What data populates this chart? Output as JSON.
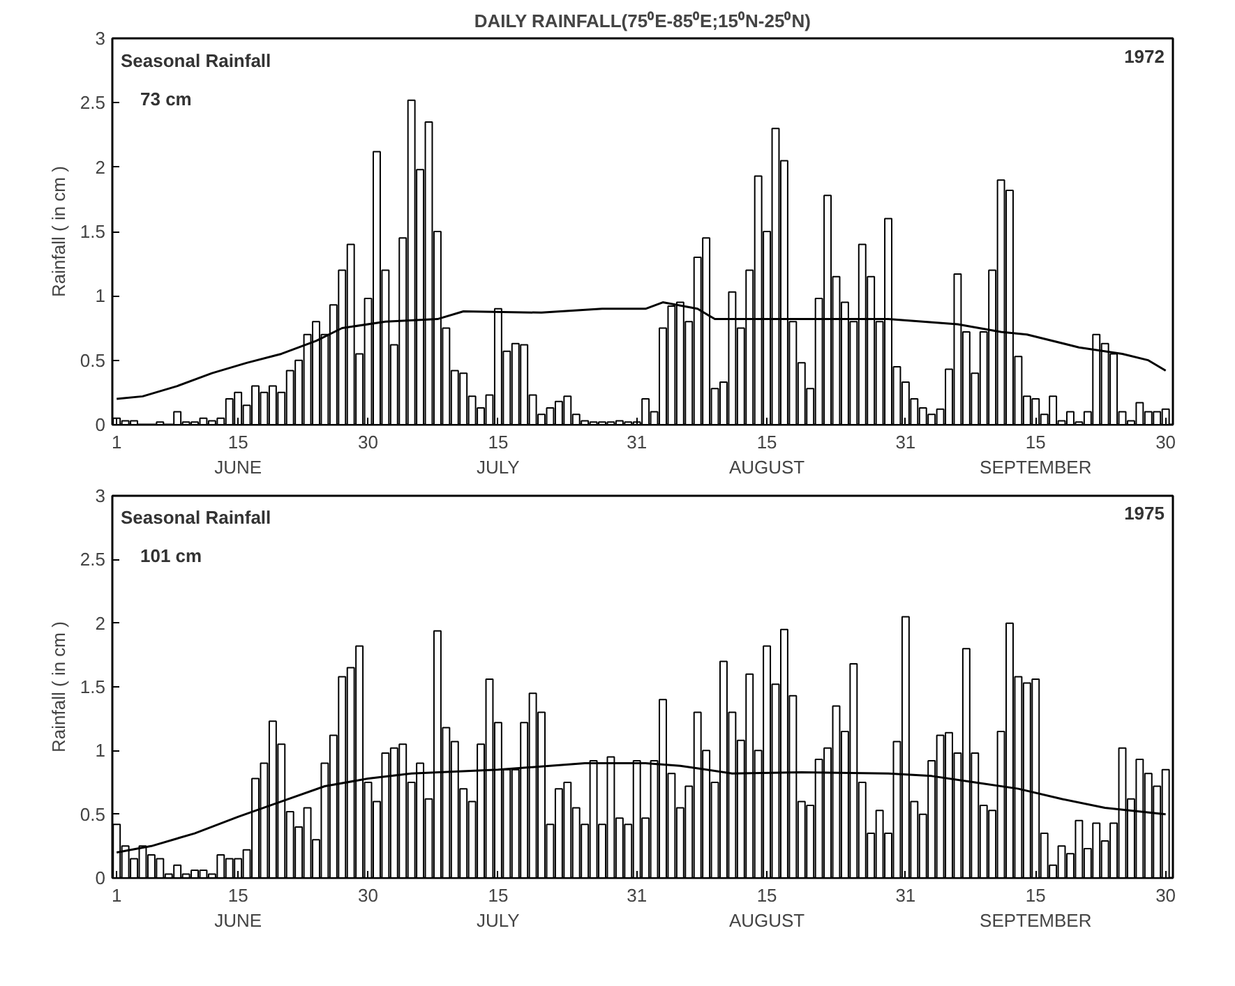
{
  "chart_data": [
    {
      "type": "bar",
      "title": "DAILY RAINFALL(75⁰E-85⁰E;15⁰N-25⁰N)",
      "ylabel": "Rainfall ( in cm )",
      "annotations": [
        "Seasonal Rainfall",
        "73 cm",
        "1972"
      ],
      "x": [
        "1972-06-01",
        "1972-06-02",
        "1972-06-03",
        "1972-06-04",
        "1972-06-05",
        "1972-06-06",
        "1972-06-07",
        "1972-06-08",
        "1972-06-09",
        "1972-06-10",
        "1972-06-11",
        "1972-06-12",
        "1972-06-13",
        "1972-06-14",
        "1972-06-15",
        "1972-06-16",
        "1972-06-17",
        "1972-06-18",
        "1972-06-19",
        "1972-06-20",
        "1972-06-21",
        "1972-06-22",
        "1972-06-23",
        "1972-06-24",
        "1972-06-25",
        "1972-06-26",
        "1972-06-27",
        "1972-06-28",
        "1972-06-29",
        "1972-06-30",
        "1972-07-01",
        "1972-07-02",
        "1972-07-03",
        "1972-07-04",
        "1972-07-05",
        "1972-07-06",
        "1972-07-07",
        "1972-07-08",
        "1972-07-09",
        "1972-07-10",
        "1972-07-11",
        "1972-07-12",
        "1972-07-13",
        "1972-07-14",
        "1972-07-15",
        "1972-07-16",
        "1972-07-17",
        "1972-07-18",
        "1972-07-19",
        "1972-07-20",
        "1972-07-21",
        "1972-07-22",
        "1972-07-23",
        "1972-07-24",
        "1972-07-25",
        "1972-07-26",
        "1972-07-27",
        "1972-07-28",
        "1972-07-29",
        "1972-07-30",
        "1972-07-31",
        "1972-08-01",
        "1972-08-02",
        "1972-08-03",
        "1972-08-04",
        "1972-08-05",
        "1972-08-06",
        "1972-08-07",
        "1972-08-08",
        "1972-08-09",
        "1972-08-10",
        "1972-08-11",
        "1972-08-12",
        "1972-08-13",
        "1972-08-14",
        "1972-08-15",
        "1972-08-16",
        "1972-08-17",
        "1972-08-18",
        "1972-08-19",
        "1972-08-20",
        "1972-08-21",
        "1972-08-22",
        "1972-08-23",
        "1972-08-24",
        "1972-08-25",
        "1972-08-26",
        "1972-08-27",
        "1972-08-28",
        "1972-08-29",
        "1972-08-30",
        "1972-08-31",
        "1972-09-01",
        "1972-09-02",
        "1972-09-03",
        "1972-09-04",
        "1972-09-05",
        "1972-09-06",
        "1972-09-07",
        "1972-09-08",
        "1972-09-09",
        "1972-09-10",
        "1972-09-11",
        "1972-09-12",
        "1972-09-13",
        "1972-09-14",
        "1972-09-15",
        "1972-09-16",
        "1972-09-17",
        "1972-09-18",
        "1972-09-19",
        "1972-09-20",
        "1972-09-21",
        "1972-09-22",
        "1972-09-23",
        "1972-09-24",
        "1972-09-25",
        "1972-09-26",
        "1972-09-27",
        "1972-09-28",
        "1972-09-29",
        "1972-09-30"
      ],
      "xlim": [
        "1972-05-31T12:00",
        "1972-09-30T20:00"
      ],
      "xticks": [
        {
          "value": "1972-06-01",
          "label": "1"
        },
        {
          "value": "1972-06-15",
          "label": "15\nJUNE"
        },
        {
          "value": "1972-06-30",
          "label": "30"
        },
        {
          "value": "1972-07-15",
          "label": "15\nJULY"
        },
        {
          "value": "1972-07-31",
          "label": "31"
        },
        {
          "value": "1972-08-15",
          "label": "15\nAUGUST"
        },
        {
          "value": "1972-08-31",
          "label": "31"
        },
        {
          "value": "1972-09-15",
          "label": "15\nSEPTEMBER"
        },
        {
          "value": "1972-09-30",
          "label": "30"
        }
      ],
      "ylim": [
        0,
        3
      ],
      "yticks": [
        0,
        0.5,
        1,
        1.5,
        2,
        2.5,
        3
      ],
      "grid": false,
      "series": [
        {
          "color": "#ffffff",
          "values": [
            0.05,
            0.03,
            0.03,
            0,
            0,
            0.02,
            0,
            0.1,
            0.02,
            0.02,
            0.05,
            0.03,
            0.05,
            0.2,
            0.25,
            0.15,
            0.3,
            0.25,
            0.3,
            0.25,
            0.42,
            0.5,
            0.7,
            0.8,
            0.7,
            0.93,
            1.2,
            1.4,
            0.55,
            0.98,
            2.12,
            1.2,
            0.62,
            1.45,
            2.52,
            1.98,
            2.35,
            1.5,
            0.75,
            0.42,
            0.4,
            0.22,
            0.13,
            0.23,
            0.9,
            0.57,
            0.63,
            0.62,
            0.23,
            0.08,
            0.13,
            0.18,
            0.22,
            0.08,
            0.03,
            0.02,
            0.02,
            0.02,
            0.03,
            0.02,
            0.02,
            0.2,
            0.1,
            0.75,
            0.92,
            0.95,
            0.8,
            1.3,
            1.45,
            0.28,
            0.33,
            1.03,
            0.75,
            1.2,
            1.93,
            1.5,
            2.3,
            2.05,
            0.8,
            0.48,
            0.28,
            0.98,
            1.78,
            1.15,
            0.95,
            0.8,
            1.4,
            1.15,
            0.8,
            1.6,
            0.45,
            0.33,
            0.2,
            0.13,
            0.08,
            0.12,
            0.43,
            1.17,
            0.72,
            0.4,
            0.72,
            1.2,
            1.9,
            1.82,
            0.53,
            0.22,
            0.2,
            0.08,
            0.22,
            0.03,
            0.1,
            0.02,
            0.1,
            0.7,
            0.63,
            0.55,
            0.1,
            0.03,
            0.17,
            0.1,
            0.1,
            0.12
          ]
        },
        {
          "type": "line",
          "color": "#000000",
          "x": [
            "1972-06-01",
            "1972-06-04",
            "1972-06-08",
            "1972-06-12",
            "1972-06-16",
            "1972-06-20",
            "1972-06-24",
            "1972-06-27",
            "1972-07-02",
            "1972-07-08",
            "1972-07-11",
            "1972-07-20",
            "1972-07-27",
            "1972-08-01",
            "1972-08-03",
            "1972-08-07",
            "1972-08-09",
            "1972-08-29",
            "1972-09-06",
            "1972-09-11",
            "1972-09-14",
            "1972-09-20",
            "1972-09-25",
            "1972-09-28",
            "1972-09-30"
          ],
          "values": [
            0.2,
            0.22,
            0.3,
            0.4,
            0.48,
            0.55,
            0.65,
            0.75,
            0.8,
            0.82,
            0.88,
            0.87,
            0.9,
            0.9,
            0.95,
            0.9,
            0.82,
            0.82,
            0.78,
            0.72,
            0.7,
            0.6,
            0.55,
            0.5,
            0.42
          ]
        }
      ]
    },
    {
      "type": "bar",
      "ylabel": "Rainfall ( in cm )",
      "annotations": [
        "Seasonal Rainfall",
        "101 cm",
        "1975"
      ],
      "x": [
        "1975-06-01",
        "1975-06-02",
        "1975-06-03",
        "1975-06-04",
        "1975-06-05",
        "1975-06-06",
        "1975-06-07",
        "1975-06-08",
        "1975-06-09",
        "1975-06-10",
        "1975-06-11",
        "1975-06-12",
        "1975-06-13",
        "1975-06-14",
        "1975-06-15",
        "1975-06-16",
        "1975-06-17",
        "1975-06-18",
        "1975-06-19",
        "1975-06-20",
        "1975-06-21",
        "1975-06-22",
        "1975-06-23",
        "1975-06-24",
        "1975-06-25",
        "1975-06-26",
        "1975-06-27",
        "1975-06-28",
        "1975-06-29",
        "1975-06-30",
        "1975-07-01",
        "1975-07-02",
        "1975-07-03",
        "1975-07-04",
        "1975-07-05",
        "1975-07-06",
        "1975-07-07",
        "1975-07-08",
        "1975-07-09",
        "1975-07-10",
        "1975-07-11",
        "1975-07-12",
        "1975-07-13",
        "1975-07-14",
        "1975-07-15",
        "1975-07-16",
        "1975-07-17",
        "1975-07-18",
        "1975-07-19",
        "1975-07-20",
        "1975-07-21",
        "1975-07-22",
        "1975-07-23",
        "1975-07-24",
        "1975-07-25",
        "1975-07-26",
        "1975-07-27",
        "1975-07-28",
        "1975-07-29",
        "1975-07-30",
        "1975-07-31",
        "1975-08-01",
        "1975-08-02",
        "1975-08-03",
        "1975-08-04",
        "1975-08-05",
        "1975-08-06",
        "1975-08-07",
        "1975-08-08",
        "1975-08-09",
        "1975-08-10",
        "1975-08-11",
        "1975-08-12",
        "1975-08-13",
        "1975-08-14",
        "1975-08-15",
        "1975-08-16",
        "1975-08-17",
        "1975-08-18",
        "1975-08-19",
        "1975-08-20",
        "1975-08-21",
        "1975-08-22",
        "1975-08-23",
        "1975-08-24",
        "1975-08-25",
        "1975-08-26",
        "1975-08-27",
        "1975-08-28",
        "1975-08-29",
        "1975-08-30",
        "1975-08-31",
        "1975-09-01",
        "1975-09-02",
        "1975-09-03",
        "1975-09-04",
        "1975-09-05",
        "1975-09-06",
        "1975-09-07",
        "1975-09-08",
        "1975-09-09",
        "1975-09-10",
        "1975-09-11",
        "1975-09-12",
        "1975-09-13",
        "1975-09-14",
        "1975-09-15",
        "1975-09-16",
        "1975-09-17",
        "1975-09-18",
        "1975-09-19",
        "1975-09-20",
        "1975-09-21",
        "1975-09-22",
        "1975-09-23",
        "1975-09-24",
        "1975-09-25",
        "1975-09-26",
        "1975-09-27",
        "1975-09-28",
        "1975-09-29",
        "1975-09-30"
      ],
      "xlim": [
        "1975-05-31T12:00",
        "1975-09-30T20:00"
      ],
      "xticks": [
        {
          "value": "1975-06-01",
          "label": "1"
        },
        {
          "value": "1975-06-15",
          "label": "15\nJUNE"
        },
        {
          "value": "1975-06-30",
          "label": "30"
        },
        {
          "value": "1975-07-15",
          "label": "15\nJULY"
        },
        {
          "value": "1975-07-31",
          "label": "31"
        },
        {
          "value": "1975-08-15",
          "label": "15\nAUGUST"
        },
        {
          "value": "1975-08-31",
          "label": "31"
        },
        {
          "value": "1975-09-15",
          "label": "15\nSEPTEMBER"
        },
        {
          "value": "1975-09-30",
          "label": "30"
        }
      ],
      "ylim": [
        0,
        3
      ],
      "yticks": [
        0,
        0.5,
        1,
        1.5,
        2,
        2.5,
        3
      ],
      "grid": false,
      "series": [
        {
          "color": "#ffffff",
          "values": [
            0.42,
            0.25,
            0.15,
            0.25,
            0.18,
            0.15,
            0.03,
            0.1,
            0.03,
            0.06,
            0.06,
            0.03,
            0.18,
            0.15,
            0.15,
            0.22,
            0.78,
            0.9,
            1.23,
            1.05,
            0.52,
            0.4,
            0.55,
            0.3,
            0.9,
            1.12,
            1.58,
            1.65,
            1.82,
            0.75,
            0.6,
            0.98,
            1.02,
            1.05,
            0.75,
            0.9,
            0.62,
            1.94,
            1.18,
            1.07,
            0.7,
            0.6,
            1.05,
            1.56,
            1.22,
            0.85,
            0.85,
            1.22,
            1.45,
            1.3,
            0.42,
            0.7,
            0.75,
            0.55,
            0.42,
            0.92,
            0.42,
            0.95,
            0.47,
            0.42,
            0.92,
            0.47,
            0.92,
            1.4,
            0.82,
            0.55,
            0.72,
            1.3,
            1.0,
            0.75,
            1.7,
            1.3,
            1.08,
            1.6,
            1.0,
            1.82,
            1.52,
            1.95,
            1.43,
            0.6,
            0.57,
            0.93,
            1.02,
            1.35,
            1.15,
            1.68,
            0.75,
            0.35,
            0.53,
            0.35,
            1.07,
            2.05,
            0.6,
            0.5,
            0.92,
            1.12,
            1.14,
            0.98,
            1.8,
            0.98,
            0.57,
            0.53,
            1.15,
            2.0,
            1.58,
            1.53,
            1.56,
            0.35,
            0.1,
            0.25,
            0.19,
            0.45,
            0.23,
            0.43,
            0.29,
            0.43,
            1.02,
            0.62,
            0.93,
            0.82,
            0.72,
            0.85
          ]
        },
        {
          "type": "line",
          "color": "#000000",
          "x": [
            "1975-06-01",
            "1975-06-05",
            "1975-06-10",
            "1975-06-15",
            "1975-06-20",
            "1975-06-25",
            "1975-06-30",
            "1975-07-05",
            "1975-07-15",
            "1975-07-25",
            "1975-08-01",
            "1975-08-05",
            "1975-08-11",
            "1975-08-19",
            "1975-08-29",
            "1975-09-03",
            "1975-09-08",
            "1975-09-13",
            "1975-09-18",
            "1975-09-23",
            "1975-09-30"
          ],
          "values": [
            0.2,
            0.25,
            0.35,
            0.48,
            0.6,
            0.72,
            0.78,
            0.82,
            0.85,
            0.9,
            0.9,
            0.88,
            0.82,
            0.83,
            0.82,
            0.8,
            0.75,
            0.7,
            0.62,
            0.55,
            0.5
          ]
        }
      ]
    }
  ]
}
